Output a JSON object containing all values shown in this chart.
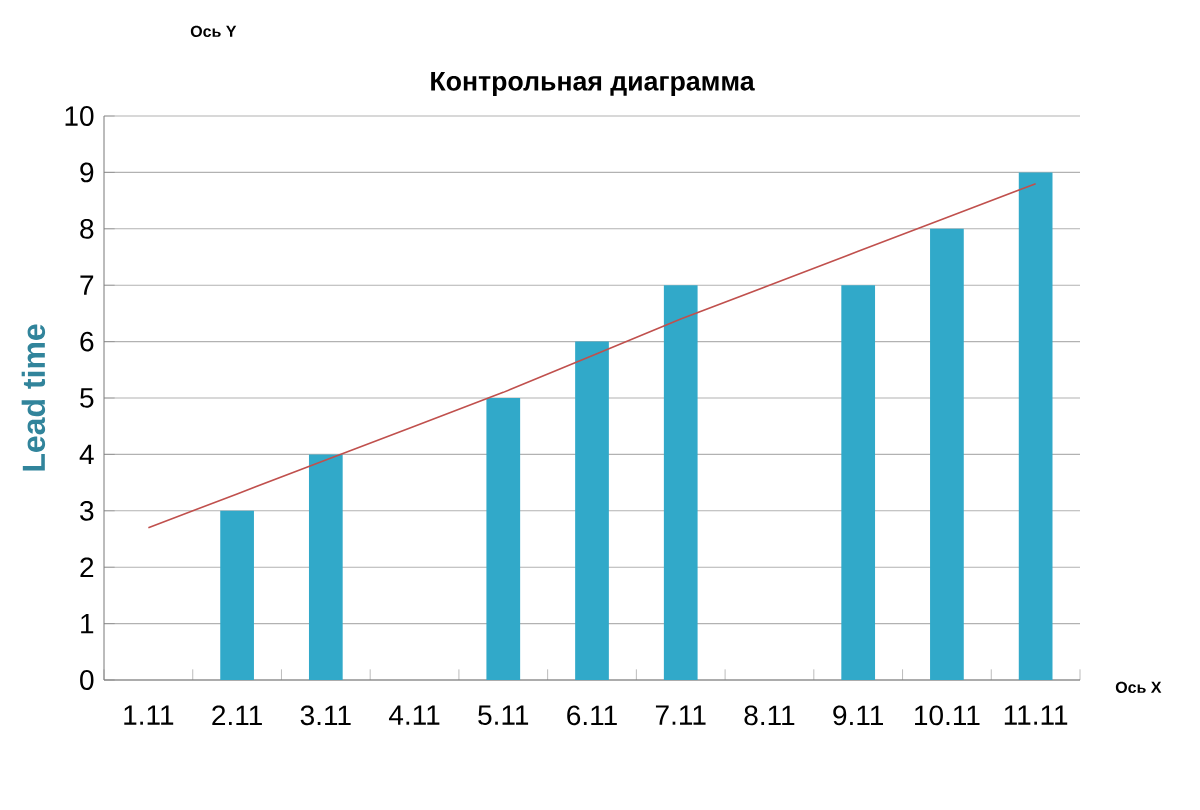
{
  "chart_data": {
    "type": "bar",
    "title": "Контрольная диаграмма",
    "ylabel": "Lead time",
    "categories": [
      "1.11",
      "2.11",
      "3.11",
      "4.11",
      "5.11",
      "6.11",
      "7.11",
      "8.11",
      "9.11",
      "10.11",
      "11.11"
    ],
    "series": [
      {
        "color": "#31a9c9",
        "values": [
          null,
          3,
          4,
          null,
          5,
          6,
          7,
          null,
          7,
          8,
          9
        ]
      },
      {
        "type": "line",
        "color": "#c0504d",
        "values": [
          2.7,
          3.3,
          3.9,
          4.5,
          5.1,
          5.75,
          6.4,
          7.0,
          7.6,
          8.2,
          8.8
        ]
      }
    ],
    "ylim": [
      0,
      10
    ],
    "yticks": [
      0,
      1,
      2,
      3,
      4,
      5,
      6,
      7,
      8,
      9,
      10
    ],
    "grid": "y",
    "annotations": [
      "Ось Y",
      "Ось X"
    ]
  }
}
